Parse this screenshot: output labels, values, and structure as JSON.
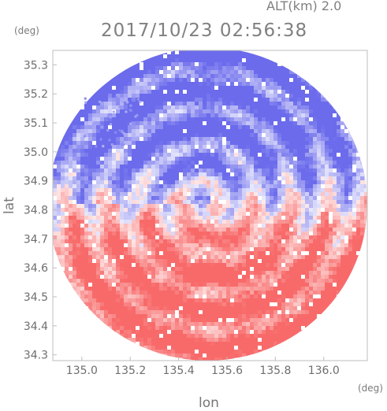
{
  "header": {
    "altitude_label": "ALT(km) 2.0",
    "timestamp": "2017/10/23 02:56:38"
  },
  "chart_data": {
    "type": "heatmap",
    "title": "2017/10/23 02:56:38",
    "subtitle": "ALT(km) 2.0",
    "xlabel": "lon",
    "ylabel": "lat",
    "x_unit": "(deg)",
    "y_unit": "(deg)",
    "xlim": [
      134.88,
      136.18
    ],
    "ylim": [
      34.28,
      35.35
    ],
    "x_ticks": [
      135.0,
      135.2,
      135.4,
      135.6,
      135.8,
      136.0
    ],
    "y_ticks": [
      34.3,
      34.4,
      34.5,
      34.6,
      34.7,
      34.8,
      34.9,
      35.0,
      35.1,
      35.2,
      35.3
    ],
    "x_tick_labels": [
      "135.0",
      "135.2",
      "135.4",
      "135.6",
      "135.8",
      "136.0"
    ],
    "y_tick_labels": [
      "34.3",
      "34.4",
      "34.5",
      "34.6",
      "34.7",
      "34.8",
      "34.9",
      "35.0",
      "35.1",
      "35.2",
      "35.3"
    ],
    "grid": false,
    "colormap": "blue-white-red diverging",
    "colors": {
      "negative": "#6b6bec",
      "neutral": "#ffffff",
      "positive": "#f86a6a",
      "axis": "#bdbdbd"
    },
    "radar_center": {
      "lon": 135.52,
      "lat": 34.82
    },
    "coverage_radius_deg": {
      "lon": 0.66,
      "lat": 0.54
    }
  }
}
